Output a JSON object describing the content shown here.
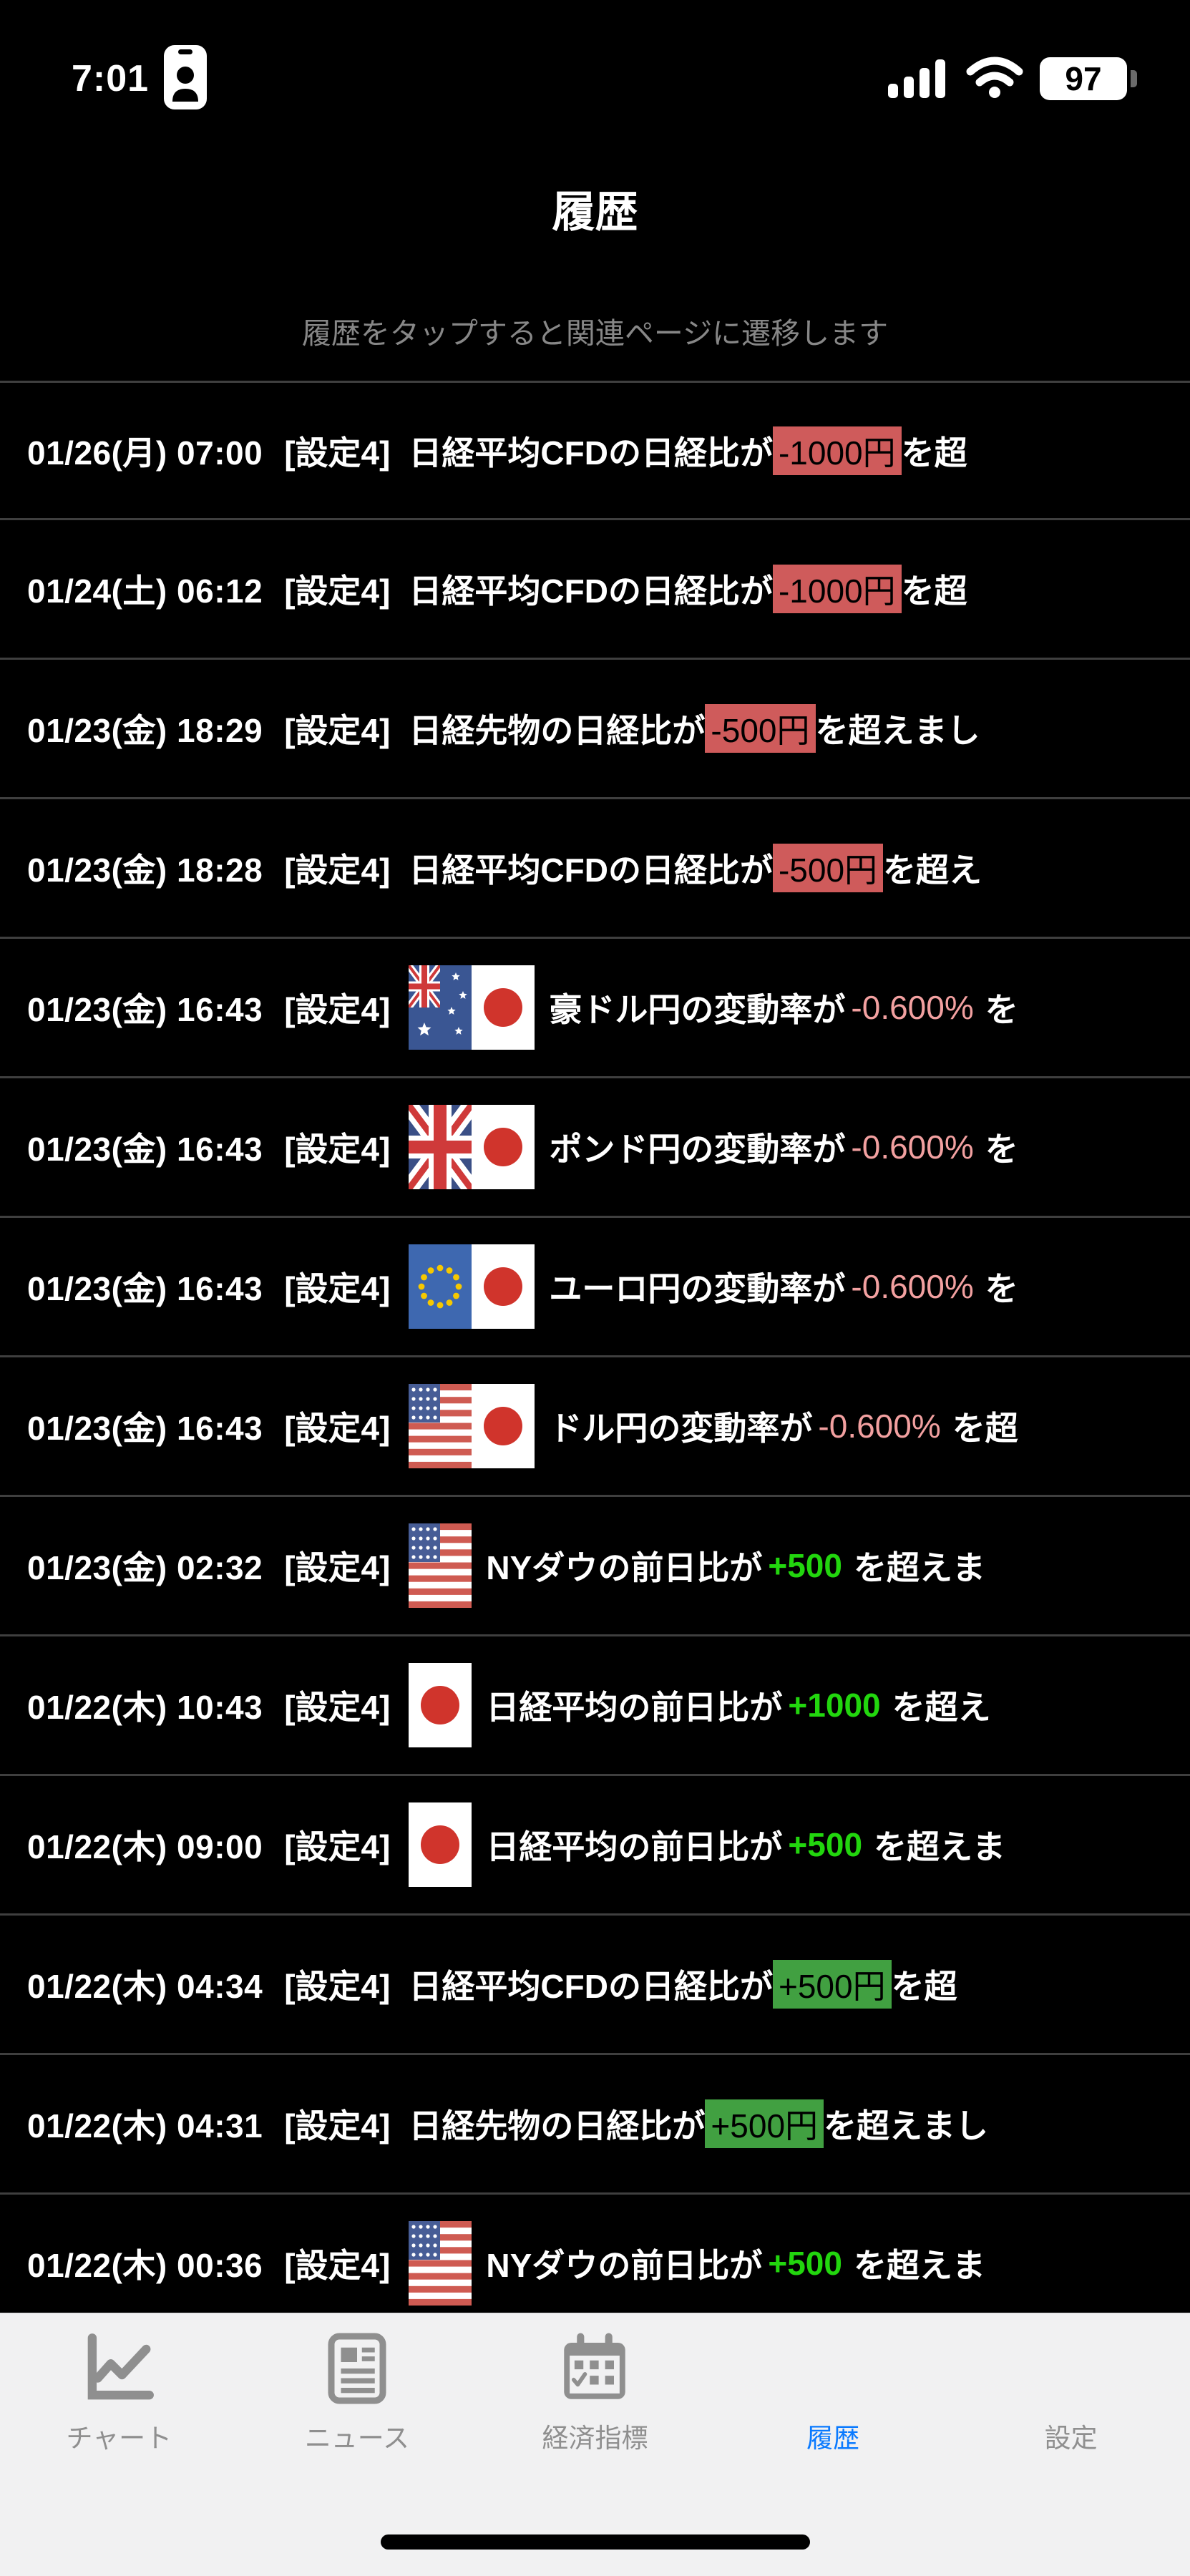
{
  "status_bar": {
    "time": "7:01",
    "battery_percent": "97"
  },
  "header": {
    "title": "履歴",
    "subtitle": "履歴をタップすると関連ページに遷移します"
  },
  "rows": [
    {
      "datetime": "01/26(月) 07:00",
      "tag": "[設定4]",
      "flags": [],
      "pre": "日経平均CFDの日経比が",
      "value": "-1000円",
      "value_style": "badge-neg",
      "post": "を超"
    },
    {
      "datetime": "01/24(土) 06:12",
      "tag": "[設定4]",
      "flags": [],
      "pre": "日経平均CFDの日経比が",
      "value": "-1000円",
      "value_style": "badge-neg",
      "post": "を超"
    },
    {
      "datetime": "01/23(金) 18:29",
      "tag": "[設定4]",
      "flags": [],
      "pre": "日経先物の日経比が",
      "value": "-500円",
      "value_style": "badge-neg",
      "post": "を超えまし"
    },
    {
      "datetime": "01/23(金) 18:28",
      "tag": "[設定4]",
      "flags": [],
      "pre": "日経平均CFDの日経比が",
      "value": "-500円",
      "value_style": "badge-neg",
      "post": "を超え"
    },
    {
      "datetime": "01/23(金) 16:43",
      "tag": "[設定4]",
      "flags": [
        "au",
        "jp"
      ],
      "pre": "豪ドル円の変動率が",
      "value": "-0.600%",
      "value_style": "text-neg",
      "post": "を"
    },
    {
      "datetime": "01/23(金) 16:43",
      "tag": "[設定4]",
      "flags": [
        "gb",
        "jp"
      ],
      "pre": "ポンド円の変動率が",
      "value": "-0.600%",
      "value_style": "text-neg",
      "post": "を"
    },
    {
      "datetime": "01/23(金) 16:43",
      "tag": "[設定4]",
      "flags": [
        "eu",
        "jp"
      ],
      "pre": "ユーロ円の変動率が",
      "value": "-0.600%",
      "value_style": "text-neg",
      "post": "を"
    },
    {
      "datetime": "01/23(金) 16:43",
      "tag": "[設定4]",
      "flags": [
        "us",
        "jp"
      ],
      "pre": "ドル円の変動率が",
      "value": "-0.600%",
      "value_style": "text-neg",
      "post": "を超"
    },
    {
      "datetime": "01/23(金) 02:32",
      "tag": "[設定4]",
      "flags": [
        "us"
      ],
      "pre": "NYダウの前日比が",
      "value": "+500",
      "value_style": "text-pos",
      "post": "を超えま"
    },
    {
      "datetime": "01/22(木) 10:43",
      "tag": "[設定4]",
      "flags": [
        "jp"
      ],
      "pre": "日経平均の前日比が",
      "value": "+1000",
      "value_style": "text-pos",
      "post": "を超え"
    },
    {
      "datetime": "01/22(木) 09:00",
      "tag": "[設定4]",
      "flags": [
        "jp"
      ],
      "pre": "日経平均の前日比が",
      "value": "+500",
      "value_style": "text-pos",
      "post": "を超えま"
    },
    {
      "datetime": "01/22(木) 04:34",
      "tag": "[設定4]",
      "flags": [],
      "pre": "日経平均CFDの日経比が",
      "value": "+500円",
      "value_style": "badge-pos",
      "post": "を超"
    },
    {
      "datetime": "01/22(木) 04:31",
      "tag": "[設定4]",
      "flags": [],
      "pre": "日経先物の日経比が",
      "value": "+500円",
      "value_style": "badge-pos",
      "post": "を超えまし"
    },
    {
      "datetime": "01/22(木) 00:36",
      "tag": "[設定4]",
      "flags": [
        "us"
      ],
      "pre": "NYダウの前日比が",
      "value": "+500",
      "value_style": "text-pos",
      "post": "を超えま"
    }
  ],
  "flag_names": {
    "au": "flag-australia",
    "jp": "flag-japan",
    "gb": "flag-uk",
    "eu": "flag-eu",
    "us": "flag-usa"
  },
  "tab_bar": {
    "items": [
      {
        "id": "chart",
        "label": "チャート",
        "icon": "chart-line-icon",
        "active": false
      },
      {
        "id": "news",
        "label": "ニュース",
        "icon": "newspaper-icon",
        "active": false
      },
      {
        "id": "calendar",
        "label": "経済指標",
        "icon": "calendar-icon",
        "active": false
      },
      {
        "id": "history",
        "label": "履歴",
        "icon": "clock-icon",
        "active": true
      },
      {
        "id": "settings",
        "label": "設定",
        "icon": "gear-icon",
        "active": false
      }
    ]
  },
  "colors": {
    "accent_blue": "#0a7aff",
    "neg_badge_bg": "#cf5b5b",
    "pos_badge_bg": "#41a041",
    "neg_text": "#f2a0a0",
    "pos_text": "#22d60e",
    "tab_icon_gray": "#8f8f8f"
  }
}
